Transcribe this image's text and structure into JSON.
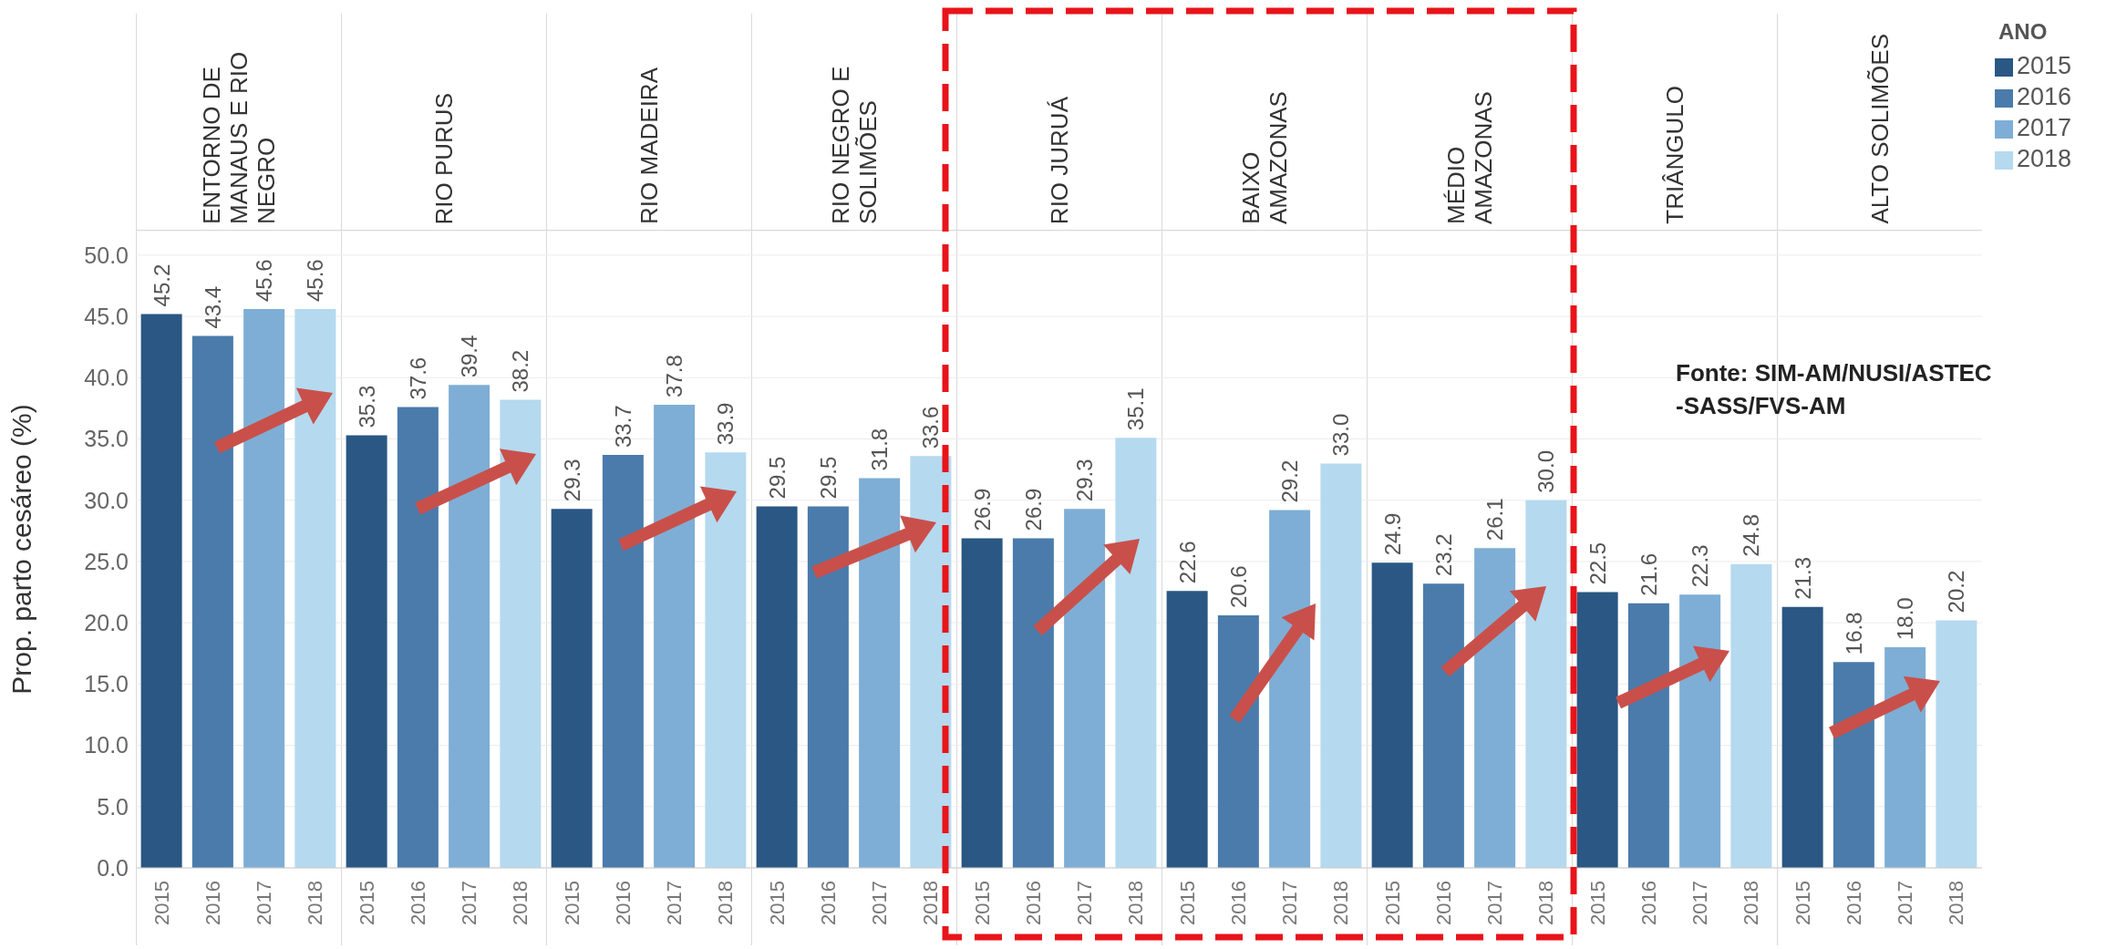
{
  "chart_data": [
    {
      "type": "bar",
      "title": "ENTORNO DE MANAUS E RIO NEGRO",
      "ylabel": "Prop. parto cesáreo (%)",
      "categories": [
        "2015",
        "2016",
        "2017",
        "2018"
      ],
      "stacked": true,
      "series": [
        {
          "color": "#2a5783",
          "values": [
            45.2,
            null,
            null,
            null
          ],
          "value_labels": [
            "45.2",
            null,
            null,
            null
          ]
        },
        {
          "color": "#4a7bab",
          "values": [
            null,
            43.4,
            null,
            null
          ],
          "value_labels": [
            null,
            "43.4",
            null,
            null
          ]
        },
        {
          "color": "#7eaed5",
          "values": [
            null,
            null,
            45.6,
            null
          ],
          "value_labels": [
            null,
            null,
            "45.6",
            null
          ]
        },
        {
          "color": "#b5d9ef",
          "values": [
            null,
            null,
            null,
            45.6
          ],
          "value_labels": [
            null,
            null,
            null,
            "45.6"
          ]
        }
      ],
      "ylim": [
        0,
        52
      ],
      "yticks": [
        {
          "value": 0,
          "label": "0.0"
        },
        {
          "value": 5,
          "label": "5.0"
        },
        {
          "value": 10,
          "label": "10.0"
        },
        {
          "value": 15,
          "label": "15.0"
        },
        {
          "value": 20,
          "label": "20.0"
        },
        {
          "value": 25,
          "label": "25.0"
        },
        {
          "value": 30,
          "label": "30.0"
        },
        {
          "value": 35,
          "label": "35.0"
        },
        {
          "value": 40,
          "label": "40.0"
        },
        {
          "value": 45,
          "label": "45.0"
        },
        {
          "value": 50,
          "label": "50.0"
        }
      ],
      "grid": "y"
    },
    {
      "type": "bar",
      "title": "RIO PURUS",
      "categories": [
        "2015",
        "2016",
        "2017",
        "2018"
      ],
      "stacked": true,
      "series": [
        {
          "color": "#2a5783",
          "values": [
            35.3,
            null,
            null,
            null
          ],
          "value_labels": [
            "35.3",
            null,
            null,
            null
          ]
        },
        {
          "color": "#4a7bab",
          "values": [
            null,
            37.6,
            null,
            null
          ],
          "value_labels": [
            null,
            "37.6",
            null,
            null
          ]
        },
        {
          "color": "#7eaed5",
          "values": [
            null,
            null,
            39.4,
            null
          ],
          "value_labels": [
            null,
            null,
            "39.4",
            null
          ]
        },
        {
          "color": "#b5d9ef",
          "values": [
            null,
            null,
            null,
            38.2
          ],
          "value_labels": [
            null,
            null,
            null,
            "38.2"
          ]
        }
      ],
      "ylim": [
        0,
        52
      ],
      "yticks": [
        0,
        5,
        10,
        15,
        20,
        25,
        30,
        35,
        40,
        45,
        50
      ],
      "grid": "y",
      "tick_labels": "x"
    },
    {
      "type": "bar",
      "title": "RIO MADEIRA",
      "categories": [
        "2015",
        "2016",
        "2017",
        "2018"
      ],
      "stacked": true,
      "series": [
        {
          "color": "#2a5783",
          "values": [
            29.3,
            null,
            null,
            null
          ],
          "value_labels": [
            "29.3",
            null,
            null,
            null
          ]
        },
        {
          "color": "#4a7bab",
          "values": [
            null,
            33.7,
            null,
            null
          ],
          "value_labels": [
            null,
            "33.7",
            null,
            null
          ]
        },
        {
          "color": "#7eaed5",
          "values": [
            null,
            null,
            37.8,
            null
          ],
          "value_labels": [
            null,
            null,
            "37.8",
            null
          ]
        },
        {
          "color": "#b5d9ef",
          "values": [
            null,
            null,
            null,
            33.9
          ],
          "value_labels": [
            null,
            null,
            null,
            "33.9"
          ]
        }
      ],
      "ylim": [
        0,
        52
      ],
      "yticks": [
        0,
        5,
        10,
        15,
        20,
        25,
        30,
        35,
        40,
        45,
        50
      ],
      "grid": "y",
      "tick_labels": "x"
    },
    {
      "type": "bar",
      "title": "RIO NEGRO E SOLIMÕES",
      "categories": [
        "2015",
        "2016",
        "2017",
        "2018"
      ],
      "stacked": true,
      "series": [
        {
          "color": "#2a5783",
          "values": [
            29.5,
            null,
            null,
            null
          ],
          "value_labels": [
            "29.5",
            null,
            null,
            null
          ]
        },
        {
          "color": "#4a7bab",
          "values": [
            null,
            29.5,
            null,
            null
          ],
          "value_labels": [
            null,
            "29.5",
            null,
            null
          ]
        },
        {
          "color": "#7eaed5",
          "values": [
            null,
            null,
            31.8,
            null
          ],
          "value_labels": [
            null,
            null,
            "31.8",
            null
          ]
        },
        {
          "color": "#b5d9ef",
          "values": [
            null,
            null,
            null,
            33.6
          ],
          "value_labels": [
            null,
            null,
            null,
            "33.6"
          ]
        }
      ],
      "ylim": [
        0,
        52
      ],
      "yticks": [
        0,
        5,
        10,
        15,
        20,
        25,
        30,
        35,
        40,
        45,
        50
      ],
      "grid": "y",
      "tick_labels": "x"
    },
    {
      "type": "bar",
      "title": "RIO JURUÁ",
      "categories": [
        "2015",
        "2016",
        "2017",
        "2018"
      ],
      "stacked": true,
      "series": [
        {
          "color": "#2a5783",
          "values": [
            26.9,
            null,
            null,
            null
          ],
          "value_labels": [
            "26.9",
            null,
            null,
            null
          ]
        },
        {
          "color": "#4a7bab",
          "values": [
            null,
            26.9,
            null,
            null
          ],
          "value_labels": [
            null,
            "26.9",
            null,
            null
          ]
        },
        {
          "color": "#7eaed5",
          "values": [
            null,
            null,
            29.3,
            null
          ],
          "value_labels": [
            null,
            null,
            "29.3",
            null
          ]
        },
        {
          "color": "#b5d9ef",
          "values": [
            null,
            null,
            null,
            35.1
          ],
          "value_labels": [
            null,
            null,
            null,
            "35.1"
          ]
        }
      ],
      "ylim": [
        0,
        52
      ],
      "yticks": [
        0,
        5,
        10,
        15,
        20,
        25,
        30,
        35,
        40,
        45,
        50
      ],
      "grid": "y",
      "tick_labels": "x"
    },
    {
      "type": "bar",
      "title": "BAIXO AMAZONAS",
      "categories": [
        "2015",
        "2016",
        "2017",
        "2018"
      ],
      "stacked": true,
      "series": [
        {
          "color": "#2a5783",
          "values": [
            22.6,
            null,
            null,
            null
          ],
          "value_labels": [
            "22.6",
            null,
            null,
            null
          ]
        },
        {
          "color": "#4a7bab",
          "values": [
            null,
            20.6,
            null,
            null
          ],
          "value_labels": [
            null,
            "20.6",
            null,
            null
          ]
        },
        {
          "color": "#7eaed5",
          "values": [
            null,
            null,
            29.2,
            null
          ],
          "value_labels": [
            null,
            null,
            "29.2",
            null
          ]
        },
        {
          "color": "#b5d9ef",
          "values": [
            null,
            null,
            null,
            33.0
          ],
          "value_labels": [
            null,
            null,
            null,
            "33.0"
          ]
        }
      ],
      "ylim": [
        0,
        52
      ],
      "yticks": [
        0,
        5,
        10,
        15,
        20,
        25,
        30,
        35,
        40,
        45,
        50
      ],
      "grid": "y",
      "tick_labels": "x"
    },
    {
      "type": "bar",
      "title": "MÉDIO AMAZONAS",
      "categories": [
        "2015",
        "2016",
        "2017",
        "2018"
      ],
      "stacked": true,
      "series": [
        {
          "color": "#2a5783",
          "values": [
            24.9,
            null,
            null,
            null
          ],
          "value_labels": [
            "24.9",
            null,
            null,
            null
          ]
        },
        {
          "color": "#4a7bab",
          "values": [
            null,
            23.2,
            null,
            null
          ],
          "value_labels": [
            null,
            "23.2",
            null,
            null
          ]
        },
        {
          "color": "#7eaed5",
          "values": [
            null,
            null,
            26.1,
            null
          ],
          "value_labels": [
            null,
            null,
            "26.1",
            null
          ]
        },
        {
          "color": "#b5d9ef",
          "values": [
            null,
            null,
            null,
            30.0
          ],
          "value_labels": [
            null,
            null,
            null,
            "30.0"
          ]
        }
      ],
      "ylim": [
        0,
        52
      ],
      "yticks": [
        0,
        5,
        10,
        15,
        20,
        25,
        30,
        35,
        40,
        45,
        50
      ],
      "grid": "y",
      "tick_labels": "x"
    },
    {
      "type": "bar",
      "title": "TRIÂNGULO",
      "categories": [
        "2015",
        "2016",
        "2017",
        "2018"
      ],
      "stacked": true,
      "series": [
        {
          "color": "#2a5783",
          "values": [
            22.5,
            null,
            null,
            null
          ],
          "value_labels": [
            "22.5",
            null,
            null,
            null
          ]
        },
        {
          "color": "#4a7bab",
          "values": [
            null,
            21.6,
            null,
            null
          ],
          "value_labels": [
            null,
            "21.6",
            null,
            null
          ]
        },
        {
          "color": "#7eaed5",
          "values": [
            null,
            null,
            22.3,
            null
          ],
          "value_labels": [
            null,
            null,
            "22.3",
            null
          ]
        },
        {
          "color": "#b5d9ef",
          "values": [
            null,
            null,
            null,
            24.8
          ],
          "value_labels": [
            null,
            null,
            null,
            "24.8"
          ]
        }
      ],
      "ylim": [
        0,
        52
      ],
      "yticks": [
        0,
        5,
        10,
        15,
        20,
        25,
        30,
        35,
        40,
        45,
        50
      ],
      "grid": "y",
      "tick_labels": "x"
    },
    {
      "type": "bar",
      "title": "ALTO SOLIMÕES",
      "categories": [
        "2015",
        "2016",
        "2017",
        "2018"
      ],
      "stacked": true,
      "series": [
        {
          "name": "2015",
          "color": "#2a5783",
          "values": [
            21.3,
            null,
            null,
            null
          ],
          "value_labels": [
            "21.3",
            null,
            null,
            null
          ]
        },
        {
          "name": "2016",
          "color": "#4a7bab",
          "values": [
            null,
            16.8,
            null,
            null
          ],
          "value_labels": [
            null,
            "16.8",
            null,
            null
          ]
        },
        {
          "name": "2017",
          "color": "#7eaed5",
          "values": [
            null,
            null,
            18.0,
            null
          ],
          "value_labels": [
            null,
            null,
            "18.0",
            null
          ]
        },
        {
          "name": "2018",
          "color": "#b5d9ef",
          "values": [
            null,
            null,
            null,
            20.2
          ],
          "value_labels": [
            null,
            null,
            null,
            "20.2"
          ]
        }
      ],
      "ylim": [
        0,
        52
      ],
      "yticks": [
        0,
        5,
        10,
        15,
        20,
        25,
        30,
        35,
        40,
        45,
        50
      ],
      "grid": "y",
      "tick_labels": "x",
      "legend": "right",
      "legend_title": "ANO",
      "annotations": [
        "Fonte: SIM-AM/NUSI/ASTEC\n-SASS/FVS-AM"
      ]
    }
  ]
}
